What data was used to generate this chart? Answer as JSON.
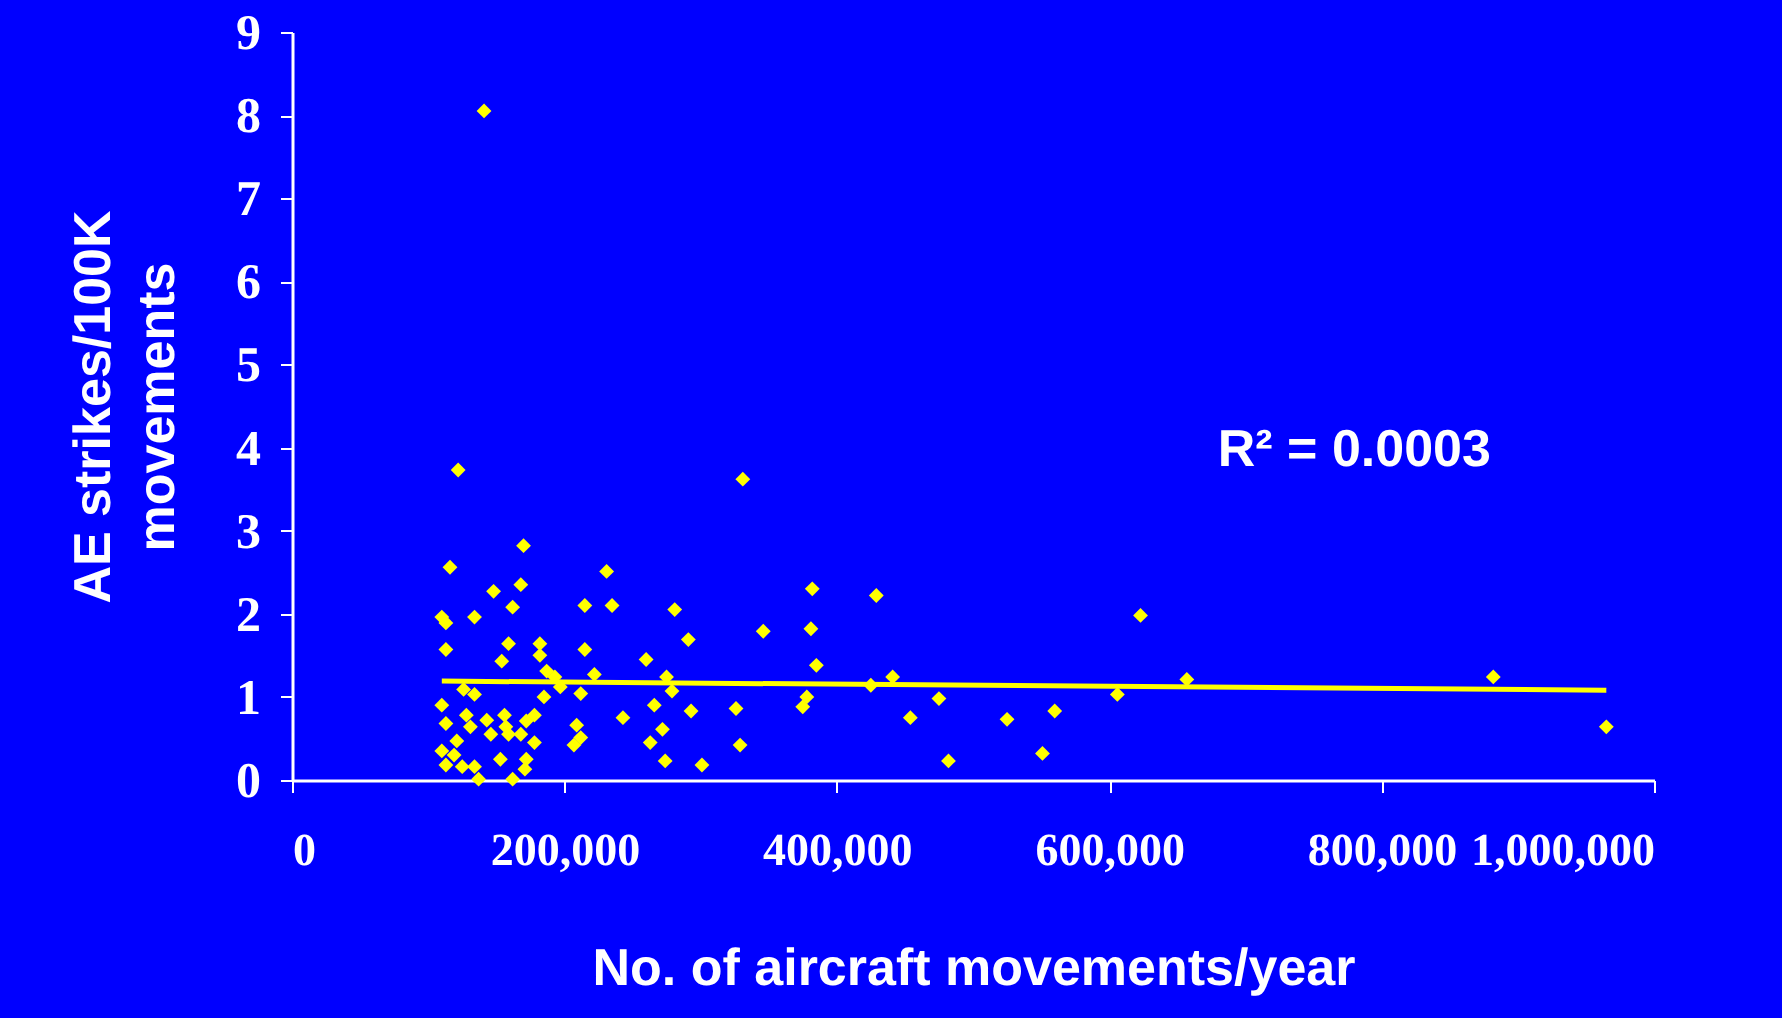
{
  "chart_data": {
    "type": "scatter",
    "xlabel": "No. of aircraft movements/year",
    "ylabel": "AE strikes/100K movements",
    "annotations": [
      "R² = 0.0003"
    ],
    "xlim": [
      0,
      1000000
    ],
    "ylim": [
      0,
      9
    ],
    "xticks": [
      {
        "value": 0,
        "label": "0"
      },
      {
        "value": 200000,
        "label": "200,000"
      },
      {
        "value": 400000,
        "label": "400,000"
      },
      {
        "value": 600000,
        "label": "600,000"
      },
      {
        "value": 800000,
        "label": "800,000"
      },
      {
        "value": 1000000,
        "label": "1,000,000"
      }
    ],
    "yticks": [
      0,
      1,
      2,
      3,
      4,
      5,
      6,
      7,
      8,
      9
    ],
    "grid": false,
    "marker": "diamond",
    "series": [
      {
        "color": "#ffff00",
        "x": [
          141000,
          122000,
          116000,
          170000,
          168000,
          148000,
          162000,
          134000,
          110000,
          113000,
          113000,
          159000,
          182000,
          182000,
          154000,
          215000,
          215000,
          187000,
          193000,
          197000,
          212000,
          222000,
          126000,
          134000,
          110000,
          113000,
          185000,
          128000,
          143000,
          156000,
          157000,
          172000,
          178000,
          168000,
          178000,
          146000,
          159000,
          131000,
          121000,
          110000,
          119000,
          113000,
          125000,
          134000,
          137000,
          153000,
          172000,
          171000,
          162000,
          209000,
          207000,
          212000,
          331000,
          231000,
          235000,
          382000,
          429000,
          281000,
          291000,
          346000,
          381000,
          260000,
          385000,
          275000,
          279000,
          425000,
          441000,
          475000,
          266000,
          243000,
          293000,
          326000,
          378000,
          375000,
          454000,
          525000,
          560000,
          272000,
          263000,
          329000,
          274000,
          301000,
          482000,
          551000,
          623000,
          606000,
          657000,
          882000,
          965000
        ],
        "values": [
          8.05,
          3.73,
          2.56,
          2.82,
          2.35,
          2.27,
          2.08,
          1.96,
          1.96,
          1.89,
          1.57,
          1.64,
          1.64,
          1.5,
          1.43,
          2.1,
          1.57,
          1.31,
          1.24,
          1.12,
          1.04,
          1.27,
          1.09,
          1.03,
          0.9,
          0.68,
          1.0,
          0.78,
          0.72,
          0.78,
          0.64,
          0.71,
          0.78,
          0.55,
          0.45,
          0.55,
          0.55,
          0.64,
          0.47,
          0.35,
          0.3,
          0.18,
          0.16,
          0.16,
          0.01,
          0.25,
          0.25,
          0.13,
          0.01,
          0.66,
          0.42,
          0.51,
          3.62,
          2.51,
          2.1,
          2.3,
          2.22,
          2.05,
          1.69,
          1.79,
          1.82,
          1.45,
          1.38,
          1.24,
          1.07,
          1.14,
          1.24,
          0.98,
          0.9,
          0.75,
          0.83,
          0.86,
          1.0,
          0.88,
          0.75,
          0.73,
          0.83,
          0.61,
          0.45,
          0.42,
          0.23,
          0.18,
          0.23,
          0.32,
          1.98,
          1.03,
          1.21,
          1.24,
          0.64
        ]
      },
      {
        "type": "line",
        "marker": "none",
        "color": "#ffff00",
        "x": [
          110000,
          965000
        ],
        "values": [
          1.19,
          1.08
        ]
      }
    ]
  }
}
